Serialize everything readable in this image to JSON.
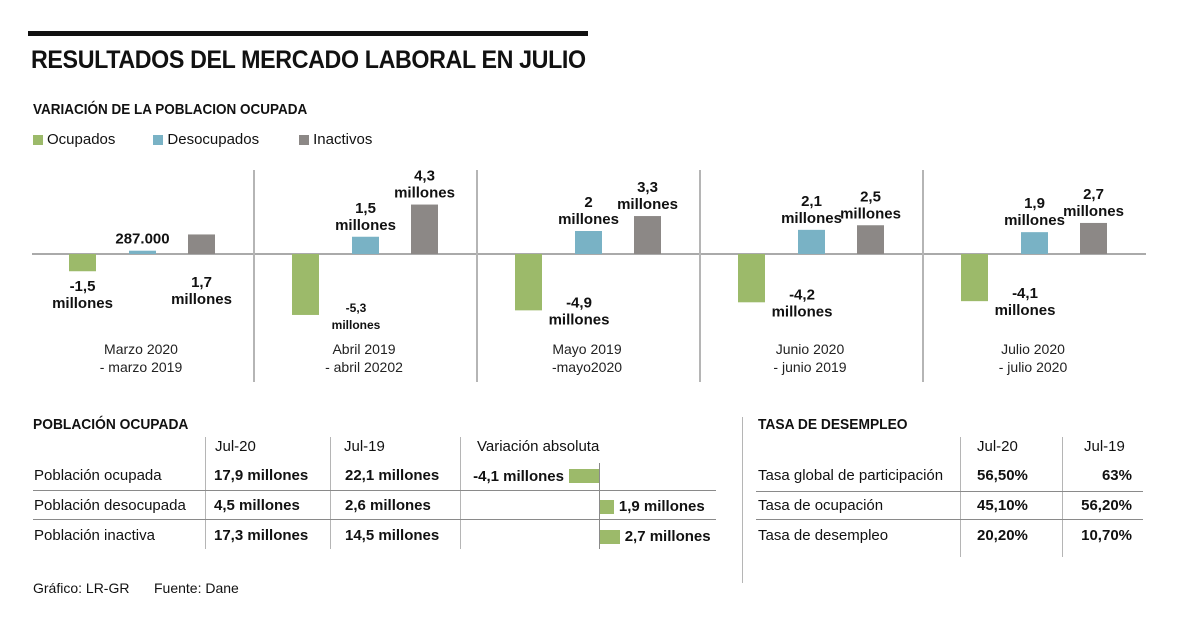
{
  "title": "RESULTADOS DEL MERCADO LABORAL EN JULIO",
  "colors": {
    "ocupados": "#9cba6a",
    "desocupados": "#79b2c5",
    "inactivos": "#8c8886",
    "text": "#111111",
    "separator": "#b5b5b5"
  },
  "chart_data": {
    "type": "bar",
    "title": "VARIACIÓN DE LA POBLACION OCUPADA",
    "xlabel": "",
    "ylabel": "",
    "unit": "millones",
    "legend_position": "top-left",
    "legend": [
      "Ocupados",
      "Desocupados",
      "Inactivos"
    ],
    "categories": [
      [
        "Marzo 2020",
        "- marzo 2019"
      ],
      [
        "Abril 2019",
        "- abril 20202"
      ],
      [
        "Mayo 2019",
        "-mayo2020"
      ],
      [
        "Junio 2020",
        "- junio 2019"
      ],
      [
        "Julio 2020",
        "- julio 2020"
      ]
    ],
    "series": [
      {
        "name": "Ocupados",
        "values": [
          -1.5,
          -5.3,
          -4.9,
          -4.2,
          -4.1
        ],
        "labels": [
          [
            "-1,5",
            "millones"
          ],
          [
            "-5,3",
            "millones"
          ],
          [
            "-4,9",
            "millones"
          ],
          [
            "-4,2",
            "millones"
          ],
          [
            "-4,1",
            "millones"
          ]
        ]
      },
      {
        "name": "Desocupados",
        "values": [
          0.287,
          1.5,
          2.0,
          2.1,
          1.9
        ],
        "labels": [
          [
            "287.000"
          ],
          [
            "1,5",
            "millones"
          ],
          [
            "2",
            "millones"
          ],
          [
            "2,1",
            "millones"
          ],
          [
            "1,9",
            "millones"
          ]
        ]
      },
      {
        "name": "Inactivos",
        "values": [
          1.7,
          4.3,
          3.3,
          2.5,
          2.7
        ],
        "labels": [
          [
            "1,7",
            "millones"
          ],
          [
            "4,3",
            "millones"
          ],
          [
            "3,3",
            "millones"
          ],
          [
            "2,5",
            "millones"
          ],
          [
            "2,7",
            "millones"
          ]
        ]
      }
    ],
    "ylim": [
      -5.5,
      4.5
    ],
    "grid": false
  },
  "poblacion": {
    "title": "POBLACIÓN OCUPADA",
    "columns": [
      "Jul-20",
      "Jul-19",
      "Variación absoluta"
    ],
    "rows": [
      {
        "label": "Población ocupada",
        "jul20": "17,9 millones",
        "jul19": "22,1 millones",
        "variacion": "-4,1 millones",
        "variacion_value": -4.1
      },
      {
        "label": "Población desocupada",
        "jul20": "4,5 millones",
        "jul19": "2,6 millones",
        "variacion": "1,9 millones",
        "variacion_value": 1.9
      },
      {
        "label": "Población inactiva",
        "jul20": "17,3 millones",
        "jul19": "14,5 millones",
        "variacion": "2,7 millones",
        "variacion_value": 2.7
      }
    ]
  },
  "desempleo": {
    "title": "TASA DE DESEMPLEO",
    "columns": [
      "Jul-20",
      "Jul-19"
    ],
    "rows": [
      {
        "label": "Tasa global de participación",
        "jul20": "56,50%",
        "jul19": "63%"
      },
      {
        "label": "Tasa de ocupación",
        "jul20": "45,10%",
        "jul19": "56,20%"
      },
      {
        "label": "Tasa de desempleo",
        "jul20": "20,20%",
        "jul19": "10,70%"
      }
    ]
  },
  "footer": {
    "grafico": "Gráfico: LR-GR",
    "fuente": "Fuente: Dane"
  }
}
